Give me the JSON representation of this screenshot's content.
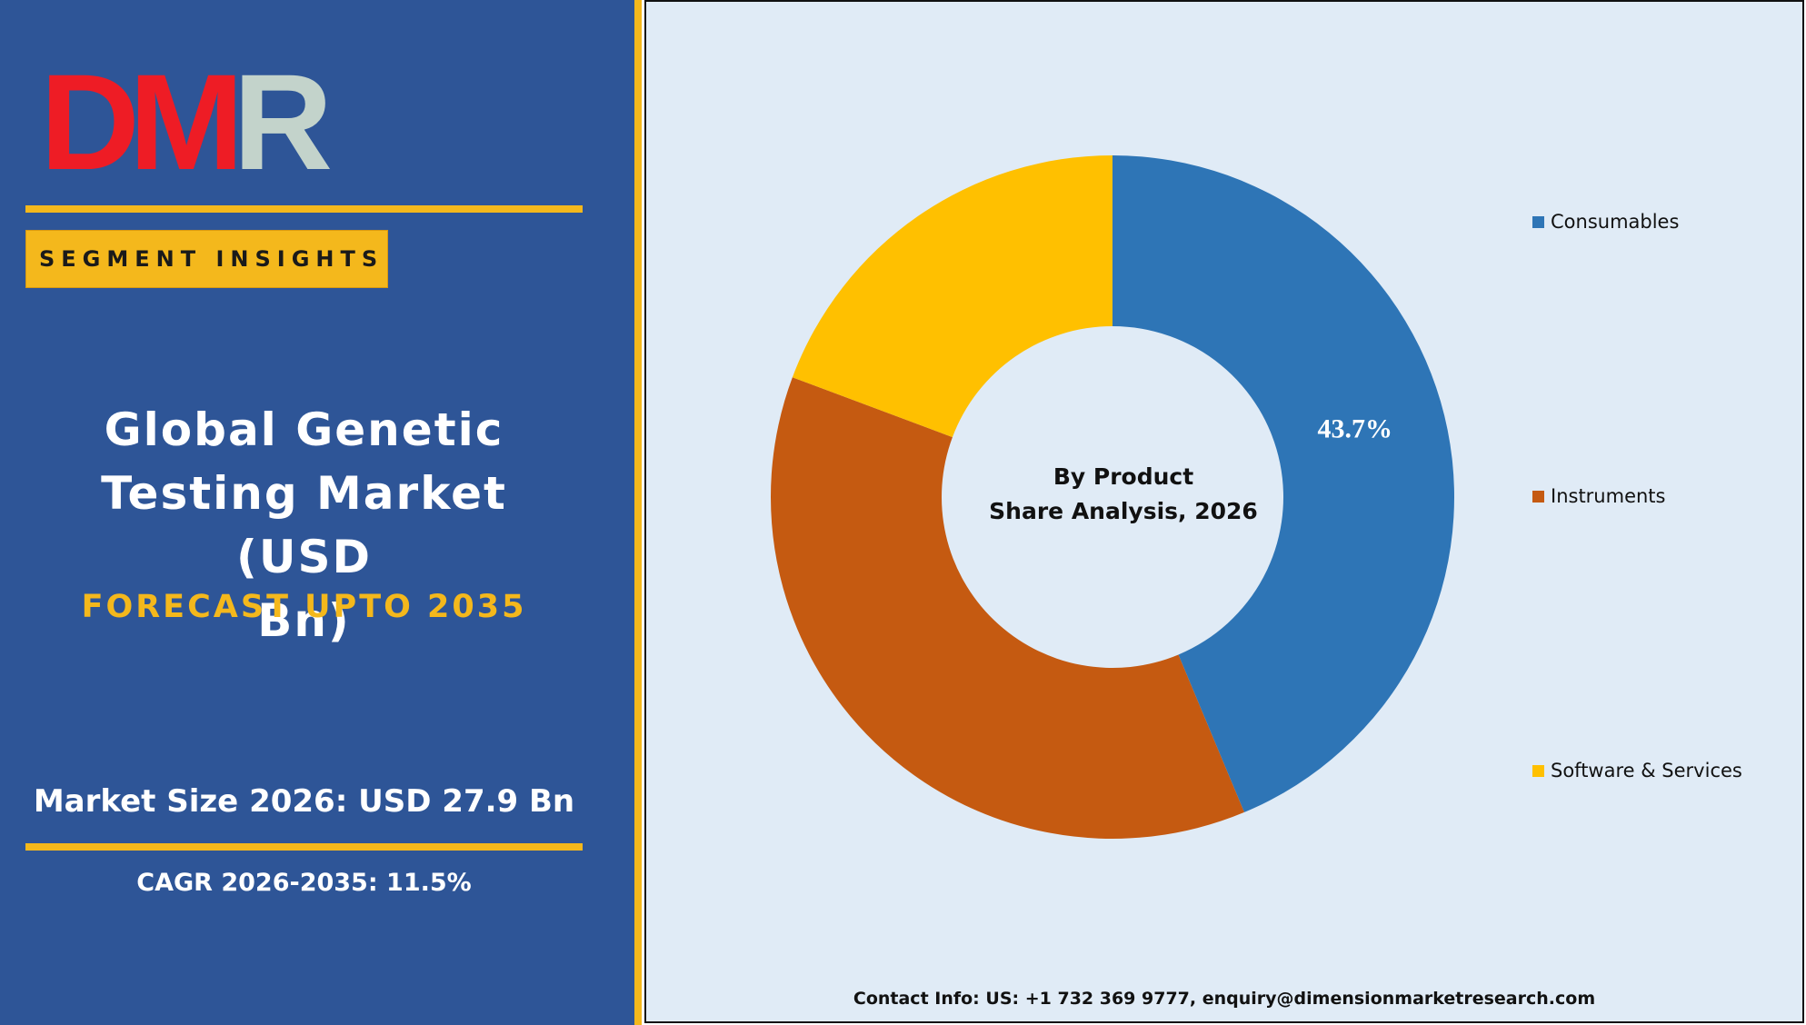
{
  "brand": {
    "logo_text": "DMR",
    "colors": {
      "panel": "#2e5597",
      "accent": "#f4b81c",
      "logo_red": "#ee1c25",
      "logo_grey": "#c3d3cb"
    }
  },
  "left": {
    "badge": "SEGMENT INSIGHTS",
    "title_lines": [
      "Global Genetic",
      "Testing Market (USD",
      "Bn)"
    ],
    "forecast": "FORECAST UPTO 2035",
    "market_size": "Market Size 2026: USD 27.9 Bn",
    "cagr": "CAGR 2026-2035: 11.5%"
  },
  "chart_data": {
    "type": "pie",
    "style": "donut",
    "center_label_lines": [
      "By Product",
      "Share Analysis, 2026"
    ],
    "categories": [
      "Consumables",
      "Instruments",
      "Software & Services"
    ],
    "values": [
      43.7,
      37.0,
      19.3
    ],
    "colors": [
      "#2e75b6",
      "#c55a11",
      "#ffc000"
    ],
    "data_labels": [
      "43.7%",
      "",
      ""
    ],
    "legend_position": "right"
  },
  "footer": {
    "contact": "Contact Info: US: +1 732 369 9777, enquiry@dimensionmarketresearch.com"
  }
}
